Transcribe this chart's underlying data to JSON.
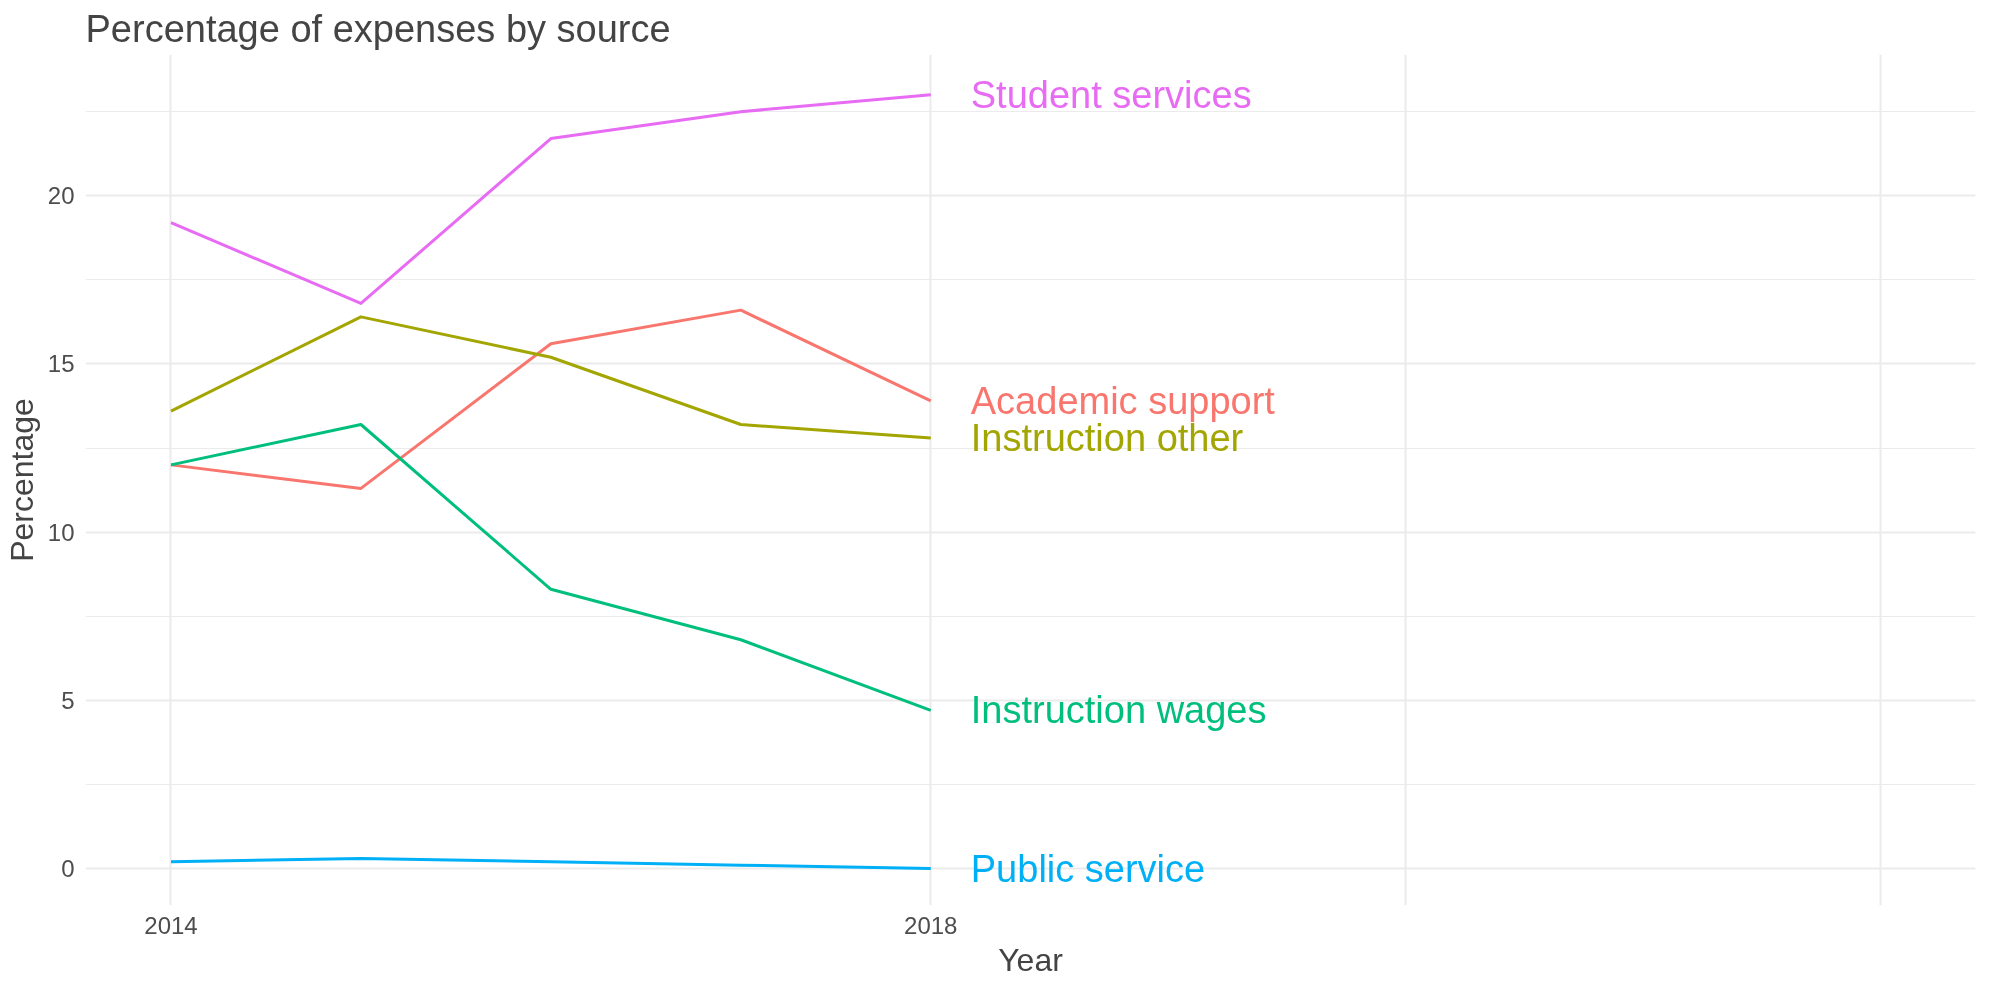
{
  "chart_data": {
    "type": "line",
    "title": "Percentage of expenses by source",
    "xlabel": "Year",
    "ylabel": "Percentage",
    "x": [
      2014,
      2015,
      2016,
      2017,
      2018
    ],
    "series": [
      {
        "name": "Student services",
        "color": "#e76bf3",
        "values": [
          19.2,
          16.8,
          21.7,
          22.5,
          23.0
        ]
      },
      {
        "name": "Academic support",
        "color": "#f8766d",
        "values": [
          12.0,
          11.3,
          15.6,
          16.6,
          13.9
        ]
      },
      {
        "name": "Instruction other",
        "color": "#a3a500",
        "values": [
          13.6,
          16.4,
          15.2,
          13.2,
          12.8
        ]
      },
      {
        "name": "Instruction wages",
        "color": "#00bf7d",
        "values": [
          12.0,
          13.2,
          8.3,
          6.8,
          4.7
        ]
      },
      {
        "name": "Public service",
        "color": "#00b0f6",
        "values": [
          0.2,
          0.3,
          0.2,
          0.1,
          0.0
        ]
      }
    ],
    "xlim": [
      2013.55,
      2023.5
    ],
    "xticks": [
      2014,
      2018,
      {
        "value": 2020.5,
        "label": null
      },
      {
        "value": 2023,
        "label": null
      }
    ],
    "ylim": [
      -1.1,
      24.2
    ],
    "yticks": [
      0,
      5,
      10,
      15,
      20
    ],
    "grid": true,
    "legend": false,
    "line_style": "solid",
    "marker": "none"
  }
}
